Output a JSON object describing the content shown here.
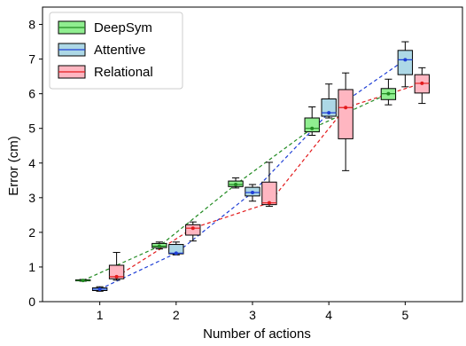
{
  "chart_data": {
    "type": "box",
    "title": "",
    "xlabel": "Number of actions",
    "ylabel": "Error (cm)",
    "xlim": [
      0.25,
      5.75
    ],
    "ylim": [
      0,
      8.5
    ],
    "x_ticks": [
      1,
      2,
      3,
      4,
      5
    ],
    "y_ticks": [
      0,
      1,
      2,
      3,
      4,
      5,
      6,
      7,
      8
    ],
    "grid": false,
    "legend_position": "top-left",
    "series": [
      {
        "name": "DeepSym",
        "fill": "#90EE90",
        "line_color": "#228B22",
        "offset": -0.22,
        "boxes": [
          {
            "x": 1,
            "whisker_low": 0.59,
            "q1": 0.6,
            "median": 0.61,
            "q3": 0.63,
            "whisker_high": 0.64,
            "mean": 0.61
          },
          {
            "x": 2,
            "whisker_low": 1.52,
            "q1": 1.56,
            "median": 1.6,
            "q3": 1.68,
            "whisker_high": 1.72,
            "mean": 1.6
          },
          {
            "x": 3,
            "whisker_low": 3.28,
            "q1": 3.32,
            "median": 3.38,
            "q3": 3.48,
            "whisker_high": 3.57,
            "mean": 3.38
          },
          {
            "x": 4,
            "whisker_low": 4.8,
            "q1": 4.9,
            "median": 5.0,
            "q3": 5.3,
            "whisker_high": 5.62,
            "mean": 5.0
          },
          {
            "x": 5,
            "whisker_low": 5.68,
            "q1": 5.83,
            "median": 6.0,
            "q3": 6.15,
            "whisker_high": 6.42,
            "mean": 6.0
          }
        ]
      },
      {
        "name": "Attentive",
        "fill": "#ADD8E6",
        "line_color": "#1f3fd6",
        "offset": 0.0,
        "boxes": [
          {
            "x": 1,
            "whisker_low": 0.3,
            "q1": 0.32,
            "median": 0.36,
            "q3": 0.4,
            "whisker_high": 0.43,
            "mean": 0.36
          },
          {
            "x": 2,
            "whisker_low": 1.35,
            "q1": 1.38,
            "median": 1.4,
            "q3": 1.65,
            "whisker_high": 1.72,
            "mean": 1.4
          },
          {
            "x": 3,
            "whisker_low": 2.9,
            "q1": 3.05,
            "median": 3.15,
            "q3": 3.3,
            "whisker_high": 3.38,
            "mean": 3.15
          },
          {
            "x": 4,
            "whisker_low": 5.3,
            "q1": 5.35,
            "median": 5.45,
            "q3": 5.85,
            "whisker_high": 6.28,
            "mean": 5.45
          },
          {
            "x": 5,
            "whisker_low": 6.2,
            "q1": 6.55,
            "median": 6.98,
            "q3": 7.25,
            "whisker_high": 7.5,
            "mean": 6.98
          }
        ]
      },
      {
        "name": "Relational",
        "fill": "#FFB6C1",
        "line_color": "#e31a1c",
        "offset": 0.22,
        "boxes": [
          {
            "x": 1,
            "whisker_low": 0.62,
            "q1": 0.66,
            "median": 0.72,
            "q3": 1.05,
            "whisker_high": 1.42,
            "mean": 0.72
          },
          {
            "x": 2,
            "whisker_low": 1.75,
            "q1": 1.92,
            "median": 2.12,
            "q3": 2.22,
            "whisker_high": 2.3,
            "mean": 2.12
          },
          {
            "x": 3,
            "whisker_low": 2.75,
            "q1": 2.8,
            "median": 2.85,
            "q3": 3.45,
            "whisker_high": 4.02,
            "mean": 2.85
          },
          {
            "x": 4,
            "whisker_low": 3.78,
            "q1": 4.7,
            "median": 5.6,
            "q3": 6.12,
            "whisker_high": 6.6,
            "mean": 5.6
          },
          {
            "x": 5,
            "whisker_low": 5.72,
            "q1": 6.02,
            "median": 6.3,
            "q3": 6.55,
            "whisker_high": 6.75,
            "mean": 6.3
          }
        ]
      }
    ]
  }
}
